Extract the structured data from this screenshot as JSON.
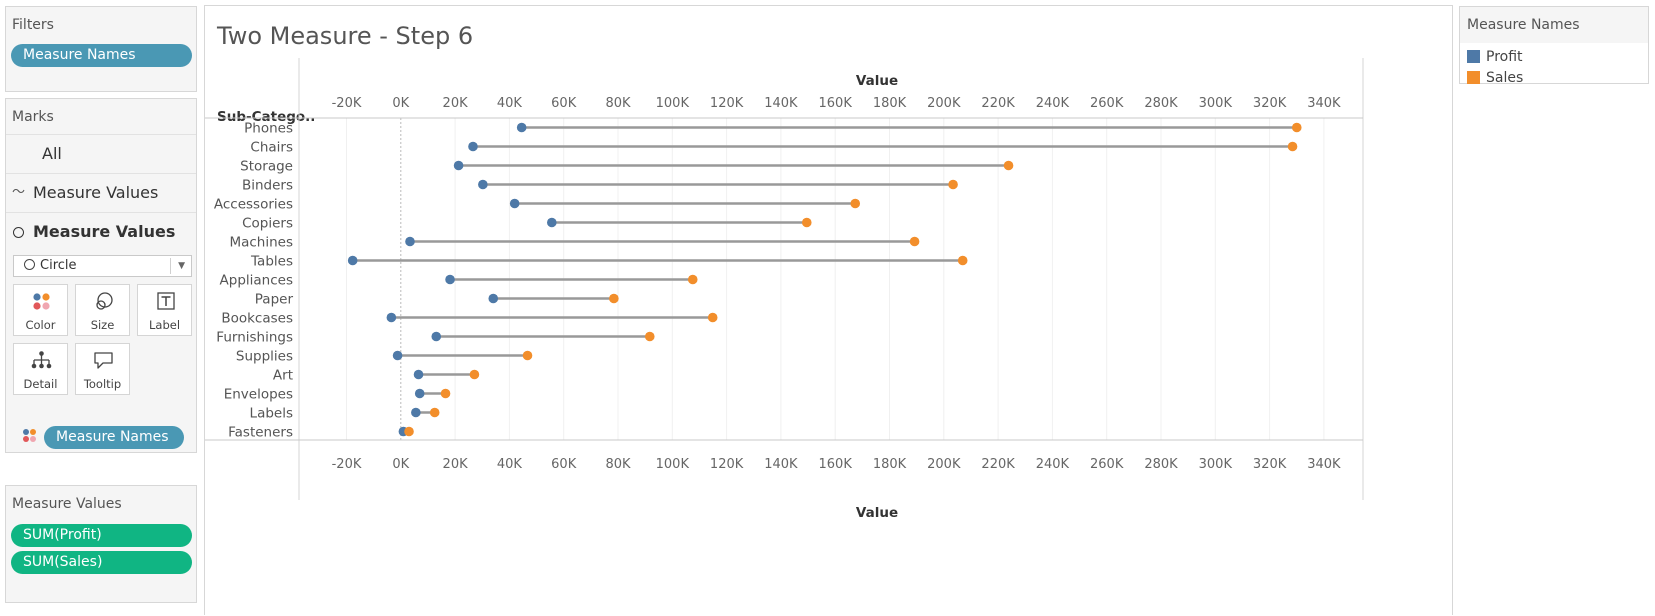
{
  "filters": {
    "title": "Filters",
    "pill": "Measure Names"
  },
  "marks": {
    "title": "Marks",
    "rows": [
      "All",
      "Measure Values",
      "Measure Values ..."
    ],
    "mark_type": "Circle",
    "cards": [
      "Color",
      "Size",
      "Label",
      "Detail",
      "Tooltip"
    ],
    "color_pill": "Measure Names"
  },
  "measure_values": {
    "title": "Measure Values",
    "pills": [
      "SUM(Profit)",
      "SUM(Sales)"
    ]
  },
  "legend": {
    "title": "Measure Names",
    "items": [
      {
        "label": "Profit",
        "color": "#4e79a7"
      },
      {
        "label": "Sales",
        "color": "#f28e2b"
      }
    ]
  },
  "chart_data": {
    "type": "scatter",
    "title": "Two Measure - Step 6",
    "row_header": "Sub-Catego..",
    "xlabel": "Value",
    "xlim": [
      -20000,
      340000
    ],
    "x_ticks": [
      -20000,
      0,
      20000,
      40000,
      60000,
      80000,
      100000,
      120000,
      140000,
      160000,
      180000,
      200000,
      220000,
      240000,
      260000,
      280000,
      300000,
      320000,
      340000
    ],
    "x_tick_labels": [
      "-20K",
      "0K",
      "20K",
      "40K",
      "60K",
      "80K",
      "100K",
      "120K",
      "140K",
      "160K",
      "180K",
      "200K",
      "220K",
      "240K",
      "260K",
      "280K",
      "300K",
      "320K",
      "340K"
    ],
    "categories": [
      "Phones",
      "Chairs",
      "Storage",
      "Binders",
      "Accessories",
      "Copiers",
      "Machines",
      "Tables",
      "Appliances",
      "Paper",
      "Bookcases",
      "Furnishings",
      "Supplies",
      "Art",
      "Envelopes",
      "Labels",
      "Fasteners"
    ],
    "series": [
      {
        "name": "Profit",
        "color": "#4e79a7",
        "values": [
          44516,
          26590,
          21279,
          30222,
          41937,
          55618,
          3385,
          -17725,
          18138,
          34054,
          -3473,
          13059,
          -1189,
          6528,
          6964,
          5546,
          950
        ]
      },
      {
        "name": "Sales",
        "color": "#f28e2b",
        "values": [
          330007,
          328449,
          223844,
          203413,
          167380,
          149528,
          189239,
          206966,
          107532,
          78479,
          114880,
          91705,
          46674,
          27119,
          16476,
          12486,
          3024
        ]
      }
    ],
    "line_color": "#999999",
    "grid": true
  }
}
